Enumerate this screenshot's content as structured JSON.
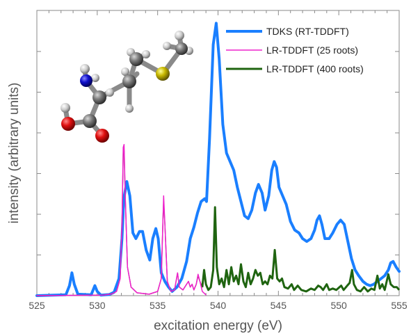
{
  "chart_data": {
    "type": "line",
    "xlabel": "excitation energy (eV)",
    "ylabel": "intensity (arbitrary units)",
    "xlim": [
      525,
      555
    ],
    "ylim": [
      0,
      1.0
    ],
    "x_ticks": [
      "525",
      "530",
      "535",
      "540",
      "545",
      "550",
      "555"
    ],
    "y_ticks_labeled": false,
    "grid": false,
    "legend_position": "top-right",
    "inset": "ball-and-stick molecule",
    "colors": {
      "tdks": "#1a7fff",
      "lr25": "#ee22cc",
      "lr400": "#1f6410",
      "lr400_thin": "#8b2b47"
    },
    "series": [
      {
        "name": "TDKS (RT-TDDFT)",
        "color": "#1a7fff",
        "width": 4,
        "points": [
          [
            525.0,
            0
          ],
          [
            527.4,
            0.003
          ],
          [
            527.7,
            0.035
          ],
          [
            527.9,
            0.08
          ],
          [
            528.1,
            0.04
          ],
          [
            528.4,
            0.005
          ],
          [
            529.5,
            0.003
          ],
          [
            529.8,
            0.035
          ],
          [
            530.0,
            0.015
          ],
          [
            530.3,
            0.002
          ],
          [
            531.0,
            0.004
          ],
          [
            531.4,
            0.012
          ],
          [
            531.8,
            0.06
          ],
          [
            532.05,
            0.2
          ],
          [
            532.2,
            0.34
          ],
          [
            532.45,
            0.4
          ],
          [
            532.7,
            0.35
          ],
          [
            532.95,
            0.22
          ],
          [
            533.2,
            0.2
          ],
          [
            533.5,
            0.225
          ],
          [
            533.75,
            0.225
          ],
          [
            534.05,
            0.16
          ],
          [
            534.35,
            0.125
          ],
          [
            534.6,
            0.2
          ],
          [
            534.85,
            0.235
          ],
          [
            535.05,
            0.2
          ],
          [
            535.3,
            0.08
          ],
          [
            535.6,
            0.05
          ],
          [
            535.9,
            0.03
          ],
          [
            536.2,
            0.015
          ],
          [
            536.6,
            0.03
          ],
          [
            537.0,
            0.06
          ],
          [
            537.4,
            0.12
          ],
          [
            537.7,
            0.2
          ],
          [
            538.0,
            0.24
          ],
          [
            538.3,
            0.29
          ],
          [
            538.6,
            0.33
          ],
          [
            538.9,
            0.34
          ],
          [
            539.05,
            0.33
          ],
          [
            539.3,
            0.55
          ],
          [
            539.6,
            0.88
          ],
          [
            539.85,
            0.955
          ],
          [
            540.1,
            0.83
          ],
          [
            540.4,
            0.6
          ],
          [
            540.7,
            0.5
          ],
          [
            541.0,
            0.47
          ],
          [
            541.3,
            0.44
          ],
          [
            541.6,
            0.38
          ],
          [
            541.9,
            0.33
          ],
          [
            542.2,
            0.28
          ],
          [
            542.5,
            0.27
          ],
          [
            542.8,
            0.3
          ],
          [
            543.1,
            0.36
          ],
          [
            543.35,
            0.39
          ],
          [
            543.65,
            0.36
          ],
          [
            543.9,
            0.3
          ],
          [
            544.2,
            0.35
          ],
          [
            544.45,
            0.44
          ],
          [
            544.65,
            0.47
          ],
          [
            544.85,
            0.45
          ],
          [
            545.05,
            0.38
          ],
          [
            545.35,
            0.35
          ],
          [
            545.65,
            0.32
          ],
          [
            546.0,
            0.26
          ],
          [
            546.35,
            0.23
          ],
          [
            546.7,
            0.22
          ],
          [
            547.0,
            0.2
          ],
          [
            547.35,
            0.19
          ],
          [
            547.7,
            0.2
          ],
          [
            548.0,
            0.23
          ],
          [
            548.2,
            0.265
          ],
          [
            548.4,
            0.28
          ],
          [
            548.6,
            0.25
          ],
          [
            548.85,
            0.2
          ],
          [
            549.2,
            0.2
          ],
          [
            549.5,
            0.22
          ],
          [
            549.85,
            0.25
          ],
          [
            550.15,
            0.265
          ],
          [
            550.45,
            0.25
          ],
          [
            550.75,
            0.19
          ],
          [
            551.05,
            0.13
          ],
          [
            551.35,
            0.09
          ],
          [
            551.65,
            0.07
          ],
          [
            552.0,
            0.05
          ],
          [
            552.3,
            0.04
          ],
          [
            552.6,
            0.035
          ],
          [
            552.9,
            0.04
          ],
          [
            553.2,
            0.05
          ],
          [
            553.5,
            0.06
          ],
          [
            553.8,
            0.07
          ],
          [
            554.1,
            0.09
          ],
          [
            554.3,
            0.115
          ],
          [
            554.5,
            0.12
          ],
          [
            554.75,
            0.1
          ],
          [
            555.0,
            0.085
          ]
        ]
      },
      {
        "name": "LR-TDDFT (25 roots)",
        "color": "#ee22cc",
        "width": 1.5,
        "points": [
          [
            525.0,
            0
          ],
          [
            530.5,
            0.002
          ],
          [
            531.2,
            0.006
          ],
          [
            531.6,
            0.015
          ],
          [
            531.9,
            0.06
          ],
          [
            532.05,
            0.25
          ],
          [
            532.15,
            0.52
          ],
          [
            532.22,
            0.53
          ],
          [
            532.32,
            0.35
          ],
          [
            532.5,
            0.1
          ],
          [
            532.8,
            0.03
          ],
          [
            533.3,
            0.01
          ],
          [
            534.3,
            0.005
          ],
          [
            535.0,
            0.015
          ],
          [
            535.3,
            0.06
          ],
          [
            535.45,
            0.28
          ],
          [
            535.5,
            0.35
          ],
          [
            535.6,
            0.25
          ],
          [
            535.8,
            0.05
          ],
          [
            536.1,
            0.015
          ],
          [
            536.4,
            0.02
          ],
          [
            536.65,
            0.08
          ],
          [
            536.8,
            0.03
          ],
          [
            537.1,
            0.02
          ],
          [
            537.4,
            0.04
          ],
          [
            537.55,
            0.05
          ],
          [
            537.7,
            0.03
          ],
          [
            537.85,
            0.04
          ],
          [
            538.0,
            0.02
          ],
          [
            538.2,
            0.04
          ],
          [
            538.35,
            0.075
          ],
          [
            538.5,
            0.05
          ],
          [
            538.7,
            0.015
          ],
          [
            539.0,
            0.003
          ]
        ]
      },
      {
        "name": "LR-TDDFT (400 roots)",
        "color": "#1f6410",
        "width": 3,
        "points": [
          [
            525.0,
            0
          ],
          [
            530.5,
            0.002
          ],
          [
            531.2,
            0.006
          ],
          [
            531.6,
            0.015
          ],
          [
            531.9,
            0.06
          ],
          [
            532.05,
            0.25
          ],
          [
            532.15,
            0.5
          ],
          [
            532.22,
            0.51
          ],
          [
            532.32,
            0.35
          ],
          [
            532.5,
            0.1
          ],
          [
            532.8,
            0.03
          ],
          [
            533.3,
            0.01
          ],
          [
            534.3,
            0.005
          ],
          [
            535.0,
            0.015
          ],
          [
            535.3,
            0.06
          ],
          [
            535.45,
            0.28
          ],
          [
            535.5,
            0.33
          ],
          [
            535.6,
            0.25
          ],
          [
            535.8,
            0.05
          ],
          [
            536.1,
            0.015
          ],
          [
            536.4,
            0.02
          ],
          [
            536.65,
            0.08
          ],
          [
            536.8,
            0.03
          ],
          [
            537.1,
            0.02
          ],
          [
            537.4,
            0.04
          ],
          [
            537.55,
            0.05
          ],
          [
            537.7,
            0.03
          ],
          [
            537.85,
            0.04
          ],
          [
            538.0,
            0.02
          ],
          [
            538.2,
            0.04
          ],
          [
            538.35,
            0.07
          ],
          [
            538.5,
            0.05
          ],
          [
            538.7,
            0.03
          ],
          [
            538.85,
            0.09
          ],
          [
            539.0,
            0.04
          ],
          [
            539.2,
            0.02
          ],
          [
            539.4,
            0.03
          ],
          [
            539.6,
            0.09
          ],
          [
            539.75,
            0.31
          ],
          [
            539.9,
            0.1
          ],
          [
            540.1,
            0.04
          ],
          [
            540.3,
            0.06
          ],
          [
            540.5,
            0.03
          ],
          [
            540.7,
            0.09
          ],
          [
            540.9,
            0.04
          ],
          [
            541.1,
            0.1
          ],
          [
            541.3,
            0.05
          ],
          [
            541.5,
            0.07
          ],
          [
            541.7,
            0.04
          ],
          [
            541.9,
            0.11
          ],
          [
            542.1,
            0.05
          ],
          [
            542.3,
            0.03
          ],
          [
            542.5,
            0.08
          ],
          [
            542.7,
            0.04
          ],
          [
            542.9,
            0.06
          ],
          [
            543.1,
            0.09
          ],
          [
            543.3,
            0.07
          ],
          [
            543.5,
            0.08
          ],
          [
            543.7,
            0.04
          ],
          [
            543.9,
            0.05
          ],
          [
            544.1,
            0.04
          ],
          [
            544.3,
            0.07
          ],
          [
            544.5,
            0.06
          ],
          [
            544.7,
            0.16
          ],
          [
            544.9,
            0.06
          ],
          [
            545.1,
            0.05
          ],
          [
            545.3,
            0.06
          ],
          [
            545.5,
            0.03
          ],
          [
            545.8,
            0.025
          ],
          [
            546.1,
            0.04
          ],
          [
            546.3,
            0.02
          ],
          [
            546.6,
            0.035
          ],
          [
            546.9,
            0.02
          ],
          [
            547.3,
            0.015
          ],
          [
            547.7,
            0.025
          ],
          [
            548.0,
            0.02
          ],
          [
            548.3,
            0.035
          ],
          [
            548.5,
            0.03
          ],
          [
            548.7,
            0.02
          ],
          [
            549.0,
            0.04
          ],
          [
            549.2,
            0.02
          ],
          [
            549.5,
            0.025
          ],
          [
            549.8,
            0.02
          ],
          [
            550.2,
            0.035
          ],
          [
            550.4,
            0.02
          ],
          [
            550.7,
            0.035
          ],
          [
            550.9,
            0.045
          ],
          [
            551.1,
            0.09
          ],
          [
            551.25,
            0.04
          ],
          [
            551.5,
            0.02
          ],
          [
            551.8,
            0.015
          ],
          [
            552.1,
            0.03
          ],
          [
            552.4,
            0.015
          ],
          [
            552.7,
            0.025
          ],
          [
            552.95,
            0.02
          ],
          [
            553.2,
            0.07
          ],
          [
            553.4,
            0.025
          ],
          [
            553.6,
            0.04
          ],
          [
            553.8,
            0.02
          ],
          [
            554.1,
            0.075
          ],
          [
            554.3,
            0.04
          ],
          [
            554.55,
            0.03
          ],
          [
            554.8,
            0.03
          ],
          [
            555.0,
            0.02
          ]
        ]
      }
    ],
    "legend": [
      {
        "label": "TDKS (RT-TDDFT)",
        "color": "#1a7fff",
        "width": 4
      },
      {
        "label": "LR-TDDFT (25 roots)",
        "color": "#ee22cc",
        "width": 1.5
      },
      {
        "label": "LR-TDDFT (400 roots)",
        "color": "#1f6410",
        "width": 3
      }
    ]
  }
}
